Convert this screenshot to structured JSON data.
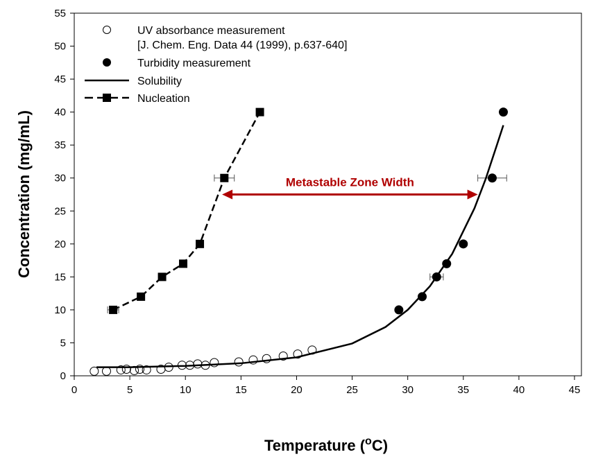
{
  "chart_data": {
    "type": "scatter",
    "title": "",
    "xlabel": "Temperature (",
    "xlabel_unit_sup": "o",
    "xlabel_unit_end": "C)",
    "ylabel": "Concentration (mg/mL)",
    "xlim": [
      0,
      45
    ],
    "ylim": [
      0,
      55
    ],
    "xticks": [
      "0",
      "5",
      "10",
      "15",
      "20",
      "25",
      "30",
      "35",
      "40",
      "45"
    ],
    "yticks": [
      "0",
      "5",
      "10",
      "15",
      "20",
      "25",
      "30",
      "35",
      "40",
      "45",
      "50",
      "55"
    ],
    "grid": false,
    "legend_position": "top-left",
    "legend": [
      {
        "label": "UV absorbance measurement",
        "label2": "[J. Chem. Eng. Data 44 (1999), p.637-640]",
        "marker": "open-circle"
      },
      {
        "label": "Turbidity measurement",
        "marker": "filled-circle"
      },
      {
        "label": "Solubility",
        "marker": "solid-line"
      },
      {
        "label": "Nucleation",
        "marker": "dashed-line-square"
      }
    ],
    "series": [
      {
        "name": "UV absorbance measurement",
        "marker": "open-circle",
        "x": [
          1.8,
          2.9,
          4.2,
          4.7,
          5.4,
          5.9,
          6.5,
          7.8,
          8.5,
          9.7,
          10.4,
          11.1,
          11.8,
          12.6,
          14.8,
          16.1,
          17.3,
          18.8,
          20.1,
          21.4
        ],
        "y": [
          0.7,
          0.7,
          0.9,
          1.0,
          0.8,
          1.0,
          0.9,
          1.0,
          1.3,
          1.6,
          1.6,
          1.8,
          1.6,
          2.0,
          2.1,
          2.4,
          2.6,
          3.0,
          3.3,
          3.9
        ]
      },
      {
        "name": "Turbidity measurement",
        "marker": "filled-circle",
        "x": [
          29.2,
          31.3,
          32.6,
          33.5,
          35.0,
          37.6,
          38.6
        ],
        "y": [
          10,
          12,
          15,
          17,
          20,
          30,
          40
        ],
        "xerr": [
          0,
          0,
          0.6,
          0,
          0,
          1.3,
          0
        ]
      },
      {
        "name": "Solubility",
        "marker": "solid-line",
        "x": [
          2,
          5,
          10,
          15,
          20,
          25,
          28,
          30,
          32,
          34,
          36,
          37,
          38,
          38.6
        ],
        "y": [
          1.3,
          1.3,
          1.5,
          1.9,
          2.8,
          4.9,
          7.4,
          10.0,
          13.6,
          18.5,
          25.4,
          29.8,
          34.9,
          38.0
        ]
      },
      {
        "name": "Nucleation",
        "marker": "dashed-line-square",
        "x": [
          3.5,
          6.0,
          7.9,
          9.8,
          11.3,
          13.5,
          16.7
        ],
        "y": [
          10,
          12,
          15,
          17,
          20,
          30,
          40
        ],
        "xerr": [
          0.5,
          0,
          0,
          0,
          0.3,
          0.9,
          0
        ]
      }
    ],
    "annotations": [
      {
        "text": "Metastable Zone Width",
        "type": "double-arrow",
        "x_from": 13.3,
        "x_to": 36.3,
        "y": 27.5,
        "color": "#b00000"
      }
    ]
  }
}
